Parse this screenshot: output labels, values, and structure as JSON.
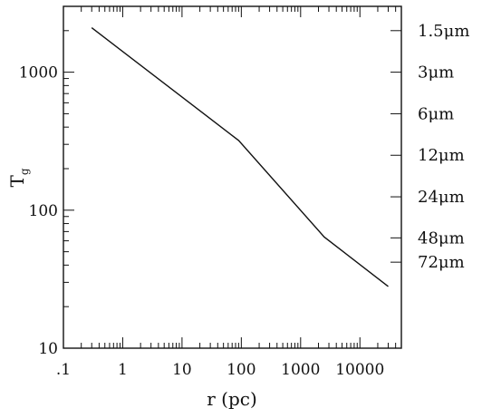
{
  "chart_data": {
    "type": "line",
    "x_scale": "log",
    "y_scale": "log",
    "xlim": [
      0.1,
      50000
    ],
    "ylim": [
      10,
      3000
    ],
    "x_ticks": [
      {
        "value": 0.1,
        "label": ".1"
      },
      {
        "value": 1,
        "label": "1"
      },
      {
        "value": 10,
        "label": "10"
      },
      {
        "value": 100,
        "label": "100"
      },
      {
        "value": 1000,
        "label": "1000"
      },
      {
        "value": 10000,
        "label": "10000"
      }
    ],
    "y_ticks": [
      {
        "value": 10,
        "label": "10"
      },
      {
        "value": 100,
        "label": "100"
      },
      {
        "value": 1000,
        "label": "1000"
      }
    ],
    "right_axis_labels": [
      {
        "value": 2000,
        "label": "1.5μm"
      },
      {
        "value": 1000,
        "label": "3μm"
      },
      {
        "value": 500,
        "label": "6μm"
      },
      {
        "value": 250,
        "label": "12μm"
      },
      {
        "value": 125,
        "label": "24μm"
      },
      {
        "value": 63,
        "label": "48μm"
      },
      {
        "value": 42,
        "label": "72μm"
      }
    ],
    "xlabel": "r  (pc)",
    "ylabel_main": "T",
    "ylabel_sub": "g",
    "grid": false,
    "series": [
      {
        "x": [
          0.3,
          90,
          2500,
          30000
        ],
        "y": [
          2100,
          320,
          64,
          28
        ]
      }
    ]
  }
}
